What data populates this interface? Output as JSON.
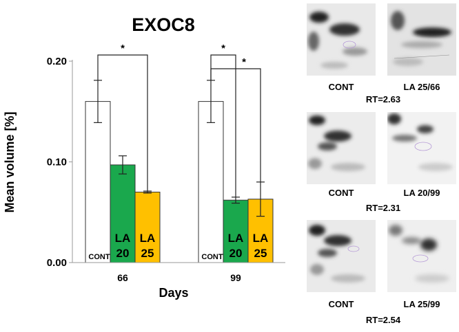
{
  "chart_data": {
    "type": "bar",
    "title": "EXOC8",
    "xlabel": "Days",
    "ylabel": "Mean volume [%]",
    "ylim": [
      0,
      0.2
    ],
    "yticks": [
      "0.00",
      "0.10",
      "0.20"
    ],
    "grid": false,
    "groups": [
      {
        "label": "66",
        "bars": [
          {
            "name": "CONT",
            "text": [
              "CONT"
            ],
            "value": 0.16,
            "error": 0.021,
            "color": "#ffffff"
          },
          {
            "name": "LA 20",
            "text": [
              "LA",
              "20"
            ],
            "value": 0.097,
            "error": 0.009,
            "color": "#1aa84d"
          },
          {
            "name": "LA 25",
            "text": [
              "LA",
              "25"
            ],
            "value": 0.07,
            "error": 0.001,
            "color": "#ffc000"
          }
        ]
      },
      {
        "label": "99",
        "bars": [
          {
            "name": "CONT",
            "text": [
              "CONT"
            ],
            "value": 0.16,
            "error": 0.021,
            "color": "#ffffff"
          },
          {
            "name": "LA 20",
            "text": [
              "LA",
              "20"
            ],
            "value": 0.062,
            "error": 0.003,
            "color": "#1aa84d"
          },
          {
            "name": "LA 25",
            "text": [
              "LA",
              "25"
            ],
            "value": 0.063,
            "error": 0.017,
            "color": "#ffc000"
          }
        ]
      }
    ],
    "significance": [
      {
        "group": 0,
        "from": 0,
        "to": 2,
        "label": "*"
      },
      {
        "group": 1,
        "from": 0,
        "to": 1,
        "label": "*"
      },
      {
        "group": 1,
        "from": 0,
        "to": 2,
        "label": "*"
      }
    ]
  },
  "gels": {
    "rows": [
      {
        "left": "CONT",
        "right": "LA 25/66",
        "rt": "RT=2.63"
      },
      {
        "left": "CONT",
        "right": "LA 20/99",
        "rt": "RT=2.31"
      },
      {
        "left": "CONT",
        "right": "LA 25/99",
        "rt": "RT=2.54"
      }
    ]
  }
}
